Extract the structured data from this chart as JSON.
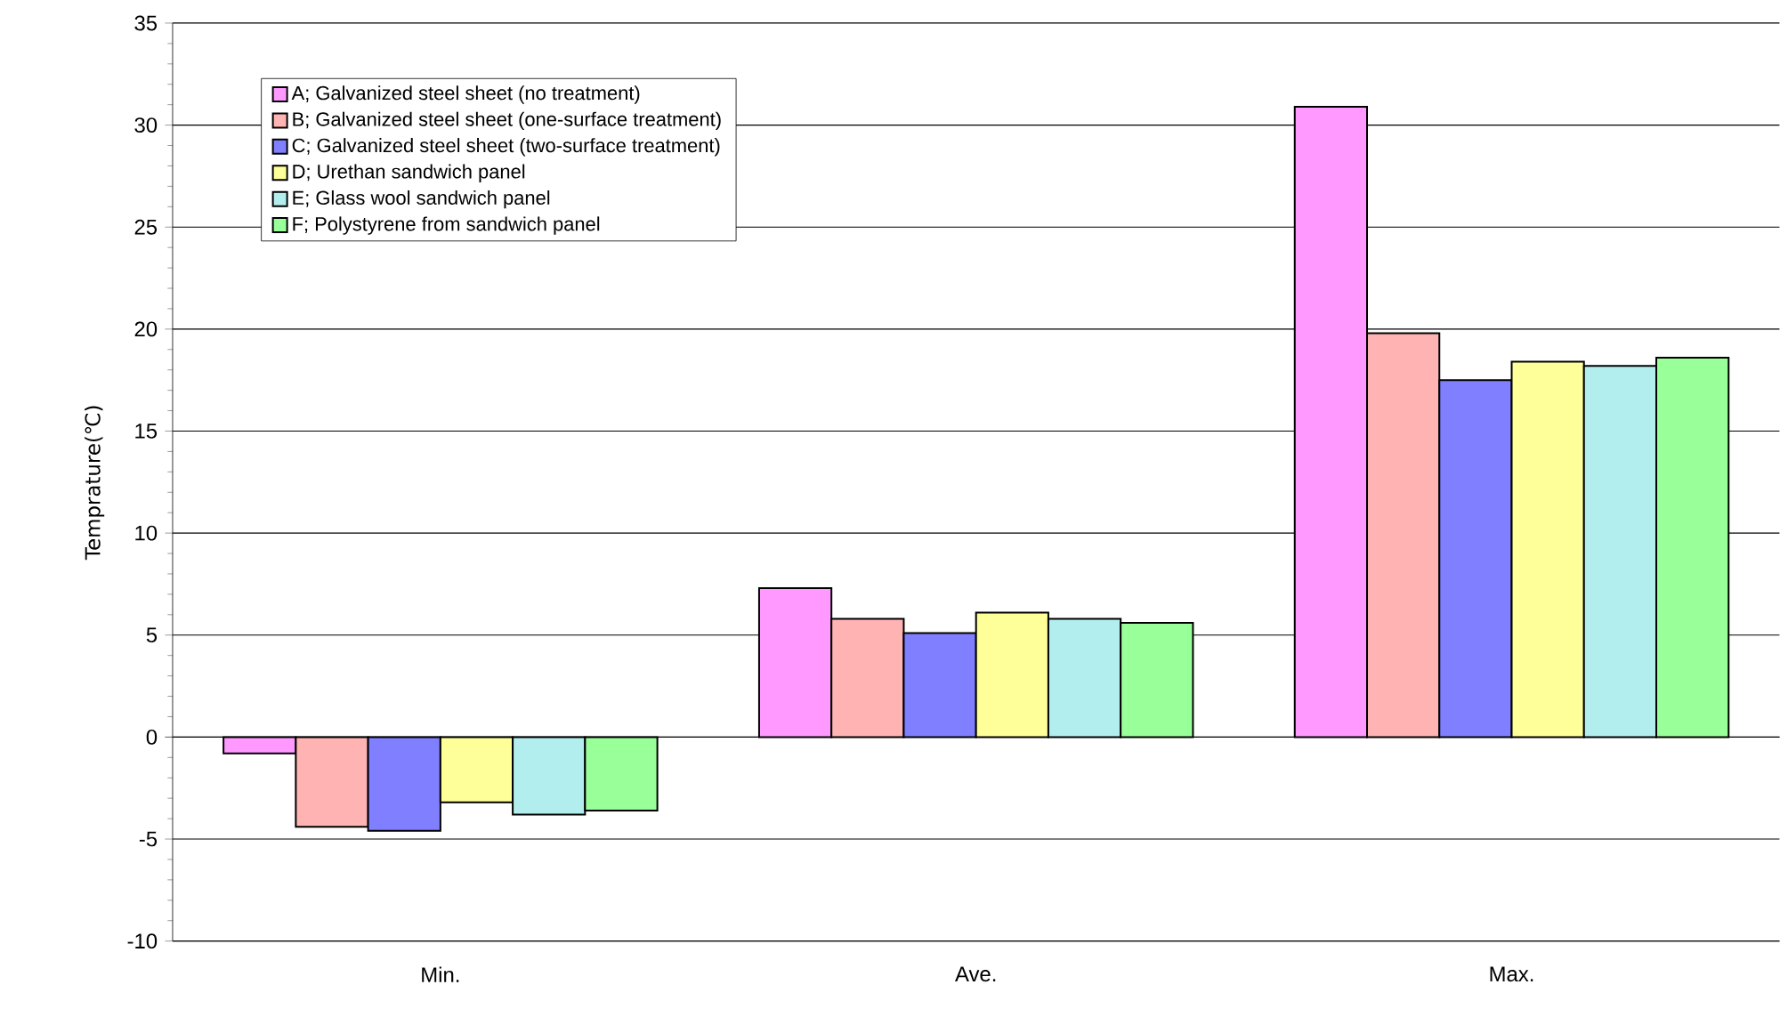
{
  "chart_data": {
    "type": "bar",
    "ylabel": "Temprature(℃)",
    "categories": [
      "Min.",
      "Ave.",
      "Max."
    ],
    "series": [
      {
        "name": "A; Galvanized steel sheet (no treatment)",
        "color": "#ff99ff",
        "values": [
          -0.8,
          7.3,
          30.9
        ]
      },
      {
        "name": "B; Galvanized steel sheet (one-surface treatment)",
        "color": "#ffb3b3",
        "values": [
          -4.4,
          5.8,
          19.8
        ]
      },
      {
        "name": "C; Galvanized steel sheet (two-surface treatment)",
        "color": "#7f7fff",
        "values": [
          -4.6,
          5.1,
          17.5
        ]
      },
      {
        "name": "D; Urethan sandwich panel",
        "color": "#ffff99",
        "values": [
          -3.2,
          6.1,
          18.4
        ]
      },
      {
        "name": "E; Glass wool sandwich panel",
        "color": "#b3eeee",
        "values": [
          -3.8,
          5.8,
          18.2
        ]
      },
      {
        "name": "F; Polystyrene from sandwich panel",
        "color": "#99ff99",
        "values": [
          -3.6,
          5.6,
          18.6
        ]
      }
    ],
    "ylim": [
      -10,
      35
    ],
    "yticks": [
      -10,
      -5,
      0,
      5,
      10,
      15,
      20,
      25,
      30,
      35
    ],
    "grid": "y",
    "legend": "top left"
  }
}
